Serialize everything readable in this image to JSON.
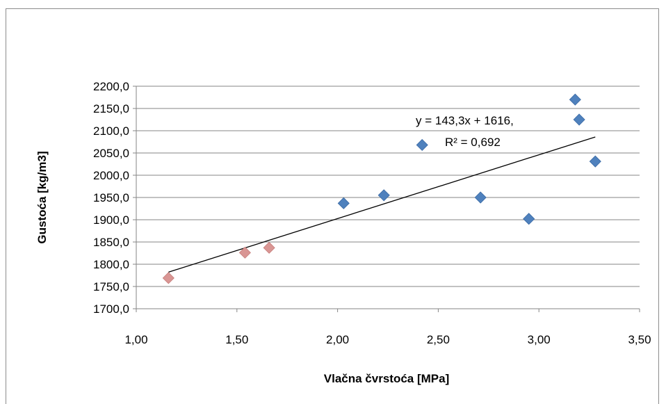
{
  "chart_data": {
    "type": "scatter",
    "xlabel": "Vlačna čvrstoća [MPa]",
    "ylabel": "Gustoća [kg/m3]",
    "xlim": [
      1.0,
      3.5
    ],
    "ylim": [
      1700,
      2200
    ],
    "x_ticks": [
      "1,00",
      "1,50",
      "2,00",
      "2,50",
      "3,00",
      "3,50"
    ],
    "y_ticks": [
      "1700,0",
      "1750,0",
      "1800,0",
      "1850,0",
      "1900,0",
      "1950,0",
      "2000,0",
      "2050,0",
      "2100,0",
      "2150,0",
      "2200,0"
    ],
    "grid": "horizontal",
    "legend": "none",
    "series": [
      {
        "color": "#4f81bd",
        "points": [
          {
            "x": 2.03,
            "y": 1937
          },
          {
            "x": 2.23,
            "y": 1955
          },
          {
            "x": 2.42,
            "y": 2068
          },
          {
            "x": 2.71,
            "y": 1950
          },
          {
            "x": 2.95,
            "y": 1902
          },
          {
            "x": 3.18,
            "y": 2170
          },
          {
            "x": 3.2,
            "y": 2125
          },
          {
            "x": 3.28,
            "y": 2031
          }
        ]
      },
      {
        "color": "#d99694",
        "points": [
          {
            "x": 1.16,
            "y": 1769
          },
          {
            "x": 1.54,
            "y": 1826
          },
          {
            "x": 1.66,
            "y": 1837
          }
        ]
      }
    ],
    "trendline": {
      "type": "linear",
      "x_range": [
        1.16,
        3.28
      ],
      "slope": 143.3,
      "intercept": 1616,
      "equation_line1": "y = 143,3x + 1616,",
      "equation_line2": "R² = 0,692",
      "color": "#000000"
    }
  }
}
